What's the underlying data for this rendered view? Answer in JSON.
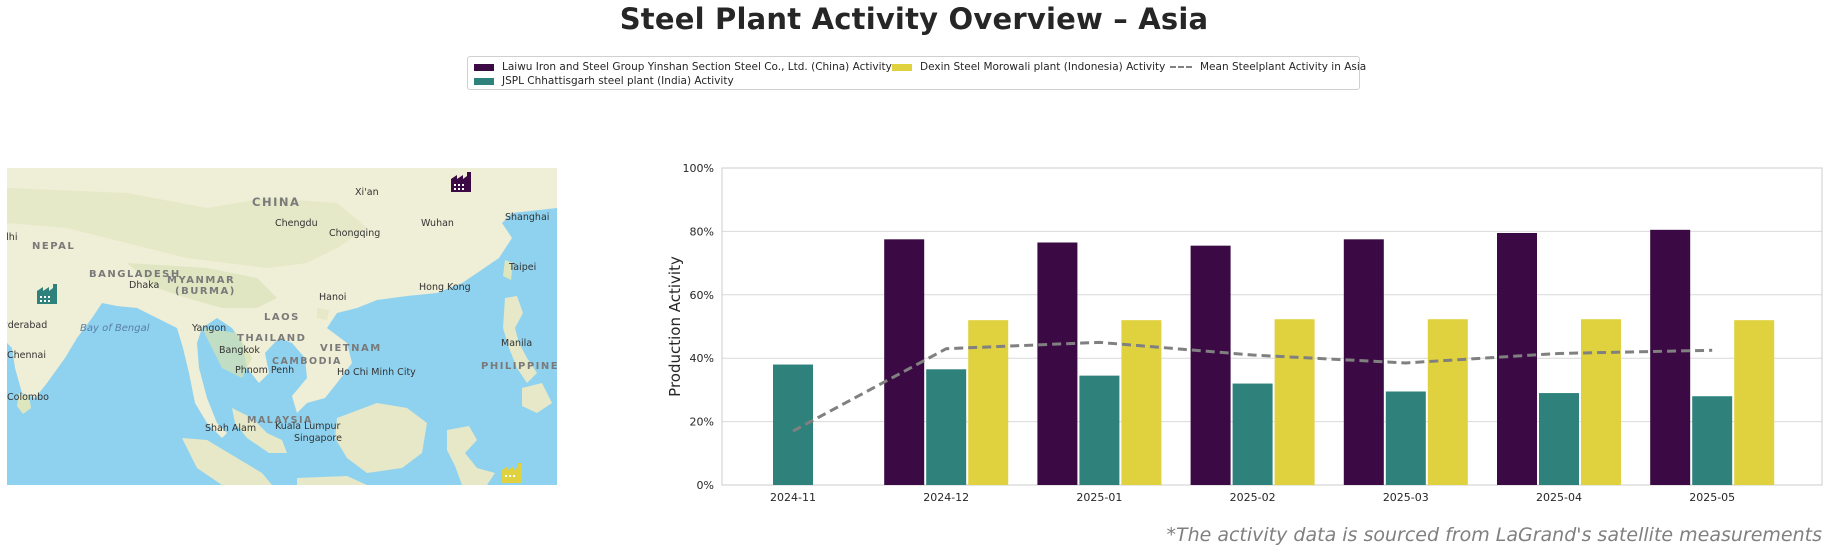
{
  "page_title": "Steel Plant Activity Overview – Asia",
  "footnote": "*The activity data is sourced from LaGrand's satellite measurements",
  "legend": {
    "items": [
      {
        "label": "Laiwu Iron and Steel Group Yinshan Section Steel Co., Ltd. (China) Activity",
        "color": "#3b0a45",
        "kind": "bar"
      },
      {
        "label": "JSPL Chhattisgarh steel plant (India) Activity",
        "color": "#2e827b",
        "kind": "bar"
      },
      {
        "label": "Dexin Steel Morowali plant (Indonesia) Activity",
        "color": "#e0d23f",
        "kind": "bar"
      },
      {
        "label": "Mean Steelplant Activity in Asia",
        "color": "#808080",
        "kind": "dashed-line"
      }
    ]
  },
  "map": {
    "labels": {
      "china": "CHINA",
      "xian": "Xi'an",
      "chengdu": "Chengdu",
      "chongqing": "Chongqing",
      "wuhan": "Wuhan",
      "shanghai": "Shanghai",
      "delhi": "Delhi",
      "nepal": "NEPAL",
      "bangladesh": "BANGLADESH",
      "dhaka": "Dhaka",
      "myanmar": "MYANMAR",
      "burma": "(BURMA)",
      "taipei": "Taipei",
      "hongkong": "Hong Kong",
      "hanoi": "Hanoi",
      "hyderabad": "Hyderabad",
      "bay_of_bengal": "Bay of Bengal",
      "yangon": "Yangon",
      "laos": "LAOS",
      "thailand": "THAILAND",
      "bangkok": "Bangkok",
      "vietnam": "VIETNAM",
      "manila": "Manila",
      "chennai": "Chennai",
      "cambodia": "CAMBODIA",
      "phnom_penh": "Phnom Penh",
      "ho_chi_minh": "Ho Chi Minh City",
      "philippines": "PHILIPPINES",
      "colombo": "Colombo",
      "malaysia": "MALAYSIA",
      "shah_alam": "Shah Alam",
      "kuala_lumpur": "Kuala Lumpur",
      "singapore": "Singapore"
    },
    "plant_icons": [
      {
        "name": "laiwu-plant-icon",
        "color": "#3b0a45"
      },
      {
        "name": "jspl-plant-icon",
        "color": "#2e827b"
      },
      {
        "name": "dexin-plant-icon",
        "color": "#e0d23f"
      }
    ]
  },
  "chart_data": {
    "type": "bar",
    "ylabel": "Production Activity",
    "xlabel": "",
    "ylim": [
      0,
      100
    ],
    "y_ticks": [
      0,
      20,
      40,
      60,
      80,
      100
    ],
    "y_tick_labels": [
      "0%",
      "20%",
      "40%",
      "60%",
      "80%",
      "100%"
    ],
    "grid": true,
    "categories": [
      "2024-11",
      "2024-12",
      "2025-01",
      "2025-02",
      "2025-03",
      "2025-04",
      "2025-05"
    ],
    "series": [
      {
        "name": "Laiwu Iron and Steel Group Yinshan Section Steel Co., Ltd. (China) Activity",
        "color": "#3b0a45",
        "values": [
          null,
          77.5,
          76.5,
          75.5,
          77.5,
          79.5,
          80.5
        ]
      },
      {
        "name": "JSPL Chhattisgarh steel plant (India) Activity",
        "color": "#2e827b",
        "values": [
          38,
          36.5,
          34.5,
          32,
          29.5,
          29,
          28
        ]
      },
      {
        "name": "Dexin Steel Morowali plant (Indonesia) Activity",
        "color": "#e0d23f",
        "values": [
          null,
          52,
          52,
          52.3,
          52.3,
          52.3,
          52
        ]
      }
    ],
    "mean_line": {
      "name": "Mean Steelplant Activity in Asia",
      "color": "#808080",
      "values": [
        17,
        43,
        45,
        41,
        38.5,
        41.5,
        42.5
      ]
    }
  }
}
